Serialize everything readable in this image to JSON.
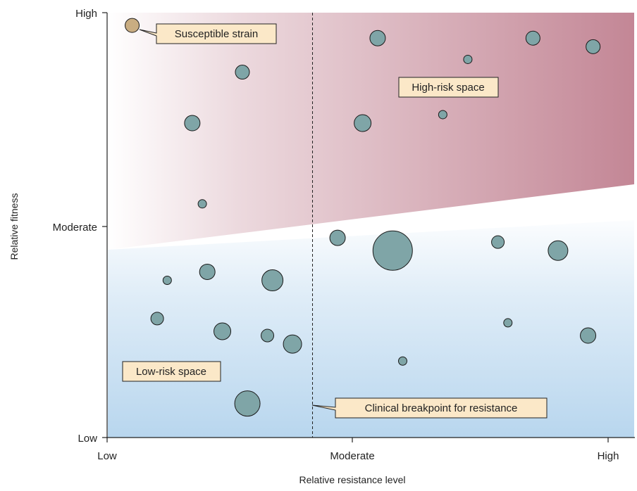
{
  "chart_data": {
    "type": "scatter",
    "title": "",
    "xlabel": "Relative resistance level",
    "ylabel": "Relative fitness",
    "x_categories": [
      "Low",
      "Moderate",
      "High"
    ],
    "y_categories": [
      "Low",
      "Moderate",
      "High"
    ],
    "xlim": [
      0,
      1
    ],
    "ylim": [
      0,
      1
    ],
    "clinical_breakpoint_x": 0.41,
    "grid": false,
    "colors": {
      "bubble": "#7fa5a7",
      "bubble_stroke": "#1a1a1a",
      "susceptible_bubble": "#c9ad82",
      "label_box": "#fbe8c8",
      "high_risk": "#c08090",
      "low_risk": "#b8d6ee"
    },
    "regions": [
      {
        "name": "High-risk space",
        "label": "High-risk space"
      },
      {
        "name": "Low-risk space",
        "label": "Low-risk space"
      }
    ],
    "annotations": {
      "susceptible": "Susceptible strain",
      "breakpoint": "Clinical breakpoint for resistance",
      "high_risk": "High-risk space",
      "low_risk": "Low-risk space"
    },
    "susceptible_point": {
      "x": 0.05,
      "y": 0.97,
      "size": 10
    },
    "points": [
      {
        "x": 0.54,
        "y": 0.94,
        "size": 11
      },
      {
        "x": 0.85,
        "y": 0.94,
        "size": 10
      },
      {
        "x": 0.97,
        "y": 0.92,
        "size": 10
      },
      {
        "x": 0.72,
        "y": 0.89,
        "size": 6
      },
      {
        "x": 0.27,
        "y": 0.86,
        "size": 10
      },
      {
        "x": 0.67,
        "y": 0.76,
        "size": 6
      },
      {
        "x": 0.17,
        "y": 0.74,
        "size": 11
      },
      {
        "x": 0.51,
        "y": 0.74,
        "size": 12
      },
      {
        "x": 0.19,
        "y": 0.55,
        "size": 6
      },
      {
        "x": 0.46,
        "y": 0.47,
        "size": 11
      },
      {
        "x": 0.57,
        "y": 0.44,
        "size": 28
      },
      {
        "x": 0.78,
        "y": 0.46,
        "size": 9
      },
      {
        "x": 0.9,
        "y": 0.44,
        "size": 14
      },
      {
        "x": 0.2,
        "y": 0.39,
        "size": 11
      },
      {
        "x": 0.12,
        "y": 0.37,
        "size": 6
      },
      {
        "x": 0.33,
        "y": 0.37,
        "size": 15
      },
      {
        "x": 0.1,
        "y": 0.28,
        "size": 9
      },
      {
        "x": 0.23,
        "y": 0.25,
        "size": 12
      },
      {
        "x": 0.32,
        "y": 0.24,
        "size": 9
      },
      {
        "x": 0.37,
        "y": 0.22,
        "size": 13
      },
      {
        "x": 0.8,
        "y": 0.27,
        "size": 6
      },
      {
        "x": 0.96,
        "y": 0.24,
        "size": 11
      },
      {
        "x": 0.59,
        "y": 0.18,
        "size": 6
      },
      {
        "x": 0.28,
        "y": 0.08,
        "size": 18
      }
    ]
  }
}
